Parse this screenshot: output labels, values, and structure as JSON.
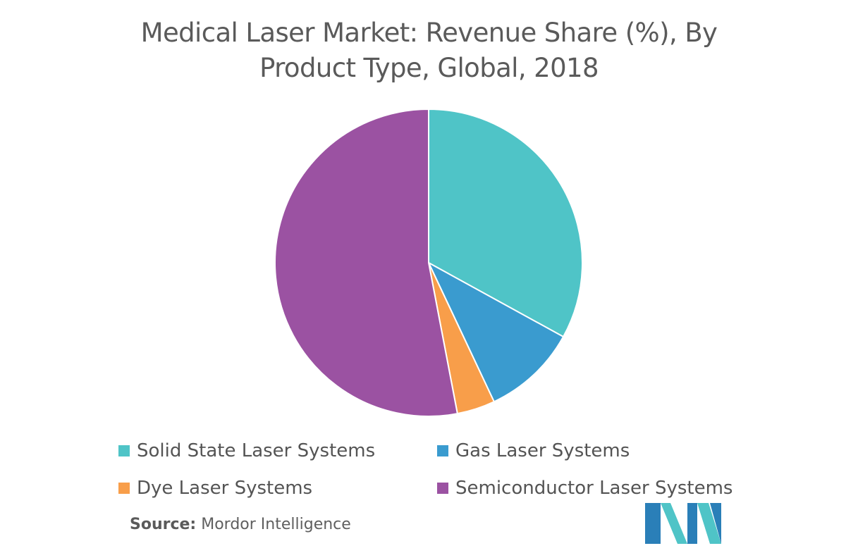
{
  "title": {
    "line1": "Medical Laser Market: Revenue Share (%), By",
    "line2": "Product Type, Global, 2018"
  },
  "chart_data": {
    "type": "pie",
    "title": "Medical Laser Market: Revenue Share (%), By Product Type, Global, 2018",
    "categories": [
      "Solid State Laser Systems",
      "Gas Laser Systems",
      "Dye Laser Systems",
      "Semiconductor Laser Systems"
    ],
    "values": [
      33,
      10,
      4,
      53
    ],
    "colors": [
      "#4fc4c7",
      "#3a9bcf",
      "#f89e4a",
      "#9b52a2"
    ],
    "legend_position": "bottom",
    "start_angle_deg": 0,
    "direction": "clockwise"
  },
  "legend": [
    {
      "label": "Solid State Laser Systems",
      "color": "#4fc4c7"
    },
    {
      "label": "Gas Laser Systems",
      "color": "#3a9bcf"
    },
    {
      "label": "Dye Laser Systems",
      "color": "#f89e4a"
    },
    {
      "label": "Semiconductor Laser Systems",
      "color": "#9b52a2"
    }
  ],
  "source": {
    "label": "Source:",
    "value": "Mordor Intelligence"
  },
  "logo": {
    "icon": "mordor-intelligence-logo-icon",
    "colors": [
      "#2a7fb8",
      "#4fc4c7"
    ]
  }
}
